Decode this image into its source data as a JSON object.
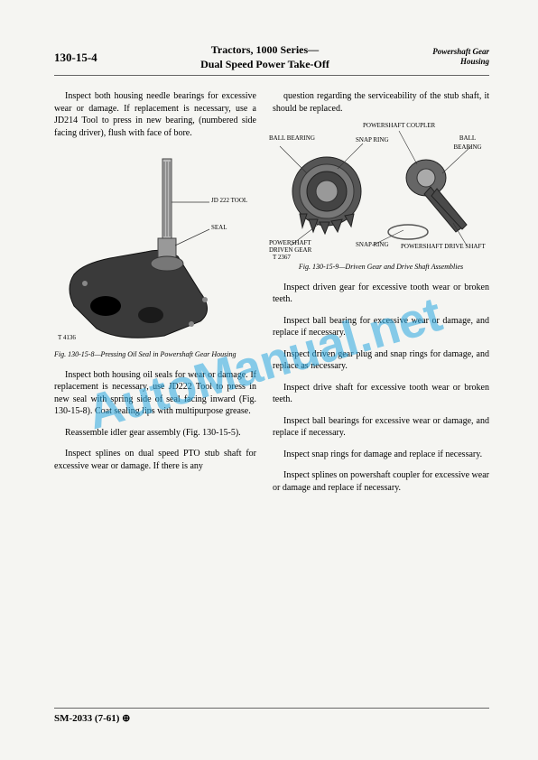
{
  "header": {
    "page_code": "130-15-4",
    "title_line1": "Tractors, 1000 Series—",
    "title_line2": "Dual Speed Power Take-Off",
    "right_line1": "Powershaft Gear",
    "right_line2": "Housing"
  },
  "left_col": {
    "p1": "Inspect both housing needle bearings for excessive wear or damage. If replacement is necessary, use a JD214 Tool to press in new bearing, (numbered side facing driver), flush with face of bore.",
    "fig1": {
      "label_tool": "JD 222 TOOL",
      "label_seal": "SEAL",
      "tmark": "T 4136",
      "caption": "Fig. 130-15-8—Pressing Oil Seal in Powershaft Gear Housing"
    },
    "p2": "Inspect both housing oil seals for wear or damage. If replacement is necessary, use JD222 Tool to press in new seal with spring side of seal facing inward (Fig. 130-15-8). Coat sealing lips with multipurpose grease.",
    "p3": "Reassemble idler gear assembly (Fig. 130-15-5).",
    "p4": "Inspect splines on dual speed PTO stub shaft for excessive wear or damage. If there is any"
  },
  "right_col": {
    "p1": "question regarding the serviceability of the stub shaft, it should be replaced.",
    "fig2": {
      "label_bb1": "BALL BEARING",
      "label_coupler": "POWERSHAFT COUPLER",
      "label_bb2": "BALL BEARING",
      "label_snap1": "SNAP RING",
      "label_gear": "POWERSHAFT",
      "label_gear2": "DRIVEN GEAR",
      "label_snap2": "SNAP RING",
      "label_shaft": "POWERSHAFT DRIVE SHAFT",
      "tmark": "T 2367",
      "caption": "Fig. 130-15-9—Driven Gear and Drive Shaft Assemblies"
    },
    "p2": "Inspect driven gear for excessive tooth wear or broken teeth.",
    "p3": "Inspect ball bearing for excessive wear or damage, and replace if necessary.",
    "p4": "Inspect driven gear plug and snap rings for damage, and replace as necessary.",
    "p5": "Inspect drive shaft for excessive tooth wear or broken teeth.",
    "p6": "Inspect ball bearings for excessive wear or damage, and replace if necessary.",
    "p7": "Inspect snap rings for damage and replace if necessary.",
    "p8": "Inspect splines on powershaft coupler for excessive wear or damage and replace if necessary."
  },
  "footer": {
    "code": "SM-2033  (7-61) ⊕"
  },
  "watermark": {
    "text": "AutoManual.net",
    "color": "#2aa8e0",
    "opacity": 0.55,
    "fontsize": 54,
    "rotate": -16
  },
  "colors": {
    "text": "#222",
    "rule": "#666",
    "bg": "#f5f5f2",
    "housing_fill": "#3a3a3a",
    "gear_fill": "#4a4a4a",
    "line": "#333"
  }
}
